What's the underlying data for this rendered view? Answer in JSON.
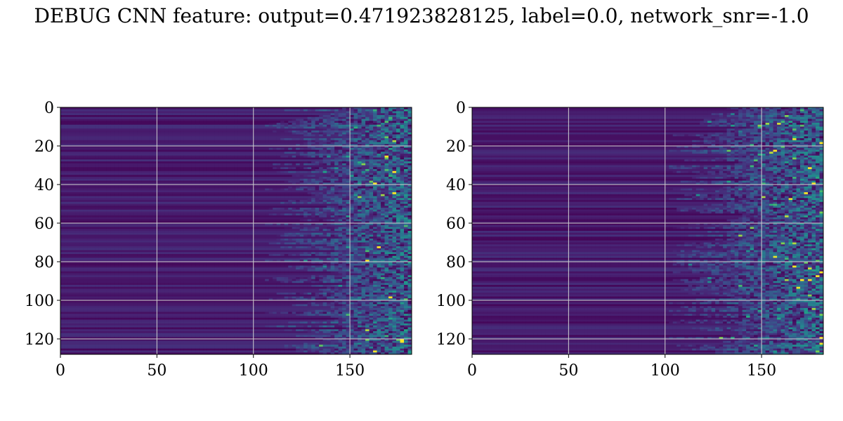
{
  "title": "DEBUG CNN feature: output=0.471923828125, label=0.0, network_snr=-1.0",
  "chart_data": [
    {
      "type": "heatmap",
      "title": "",
      "xlabel": "",
      "ylabel": "",
      "colormap": "viridis",
      "xlim": [
        0,
        182
      ],
      "ylim": [
        128,
        0
      ],
      "xticks": [
        0,
        50,
        100,
        150
      ],
      "yticks": [
        0,
        20,
        40,
        60,
        80,
        100,
        120
      ],
      "grid": true,
      "grid_color": "#d0d0d0",
      "bright_region_x_start": 125,
      "n_rows": 128,
      "n_cols": 182,
      "seed": 7
    },
    {
      "type": "heatmap",
      "title": "",
      "xlabel": "",
      "ylabel": "",
      "colormap": "viridis",
      "xlim": [
        0,
        182
      ],
      "ylim": [
        128,
        0
      ],
      "xticks": [
        0,
        50,
        100,
        150
      ],
      "yticks": [
        0,
        20,
        40,
        60,
        80,
        100,
        120
      ],
      "grid": true,
      "grid_color": "#d0d0d0",
      "bright_region_x_start": 120,
      "n_rows": 128,
      "n_cols": 182,
      "seed": 23
    }
  ]
}
